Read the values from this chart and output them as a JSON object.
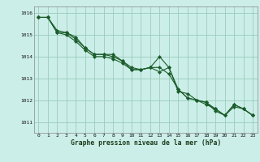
{
  "title": "Graphe pression niveau de la mer (hPa)",
  "bg_color": "#cceee8",
  "grid_color": "#99ccbb",
  "line_color": "#1a5c2a",
  "marker_color": "#1a5c2a",
  "x_labels": [
    "0",
    "1",
    "2",
    "3",
    "4",
    "5",
    "6",
    "7",
    "8",
    "9",
    "10",
    "11",
    "12",
    "13",
    "14",
    "15",
    "16",
    "17",
    "18",
    "19",
    "20",
    "21",
    "22",
    "23"
  ],
  "ylim": [
    1010.5,
    1016.3
  ],
  "yticks": [
    1011,
    1012,
    1013,
    1014,
    1015,
    1016
  ],
  "series": [
    [
      1015.8,
      1015.8,
      1015.2,
      1015.1,
      1014.8,
      1014.4,
      1014.1,
      1014.1,
      1014.1,
      1013.8,
      1013.5,
      1013.4,
      1013.5,
      1013.5,
      1013.2,
      1012.5,
      1012.1,
      1012.0,
      1011.9,
      1011.6,
      1011.3,
      1011.8,
      1011.6,
      1011.3
    ],
    [
      1015.8,
      1015.8,
      1015.1,
      1015.0,
      1014.7,
      1014.3,
      1014.0,
      1014.0,
      1013.9,
      1013.7,
      1013.4,
      1013.4,
      1013.5,
      1014.0,
      1013.5,
      1012.4,
      1012.3,
      1012.0,
      1011.9,
      1011.5,
      1011.3,
      1011.7,
      1011.6,
      1011.3
    ],
    [
      1015.8,
      1015.8,
      1015.1,
      1015.1,
      1014.9,
      1014.4,
      1014.1,
      1014.1,
      1014.0,
      1013.8,
      1013.4,
      1013.4,
      1013.5,
      1013.3,
      1013.5,
      1012.5,
      1012.1,
      1012.0,
      1011.8,
      1011.6,
      1011.3,
      1011.8,
      1011.6,
      1011.3
    ]
  ]
}
